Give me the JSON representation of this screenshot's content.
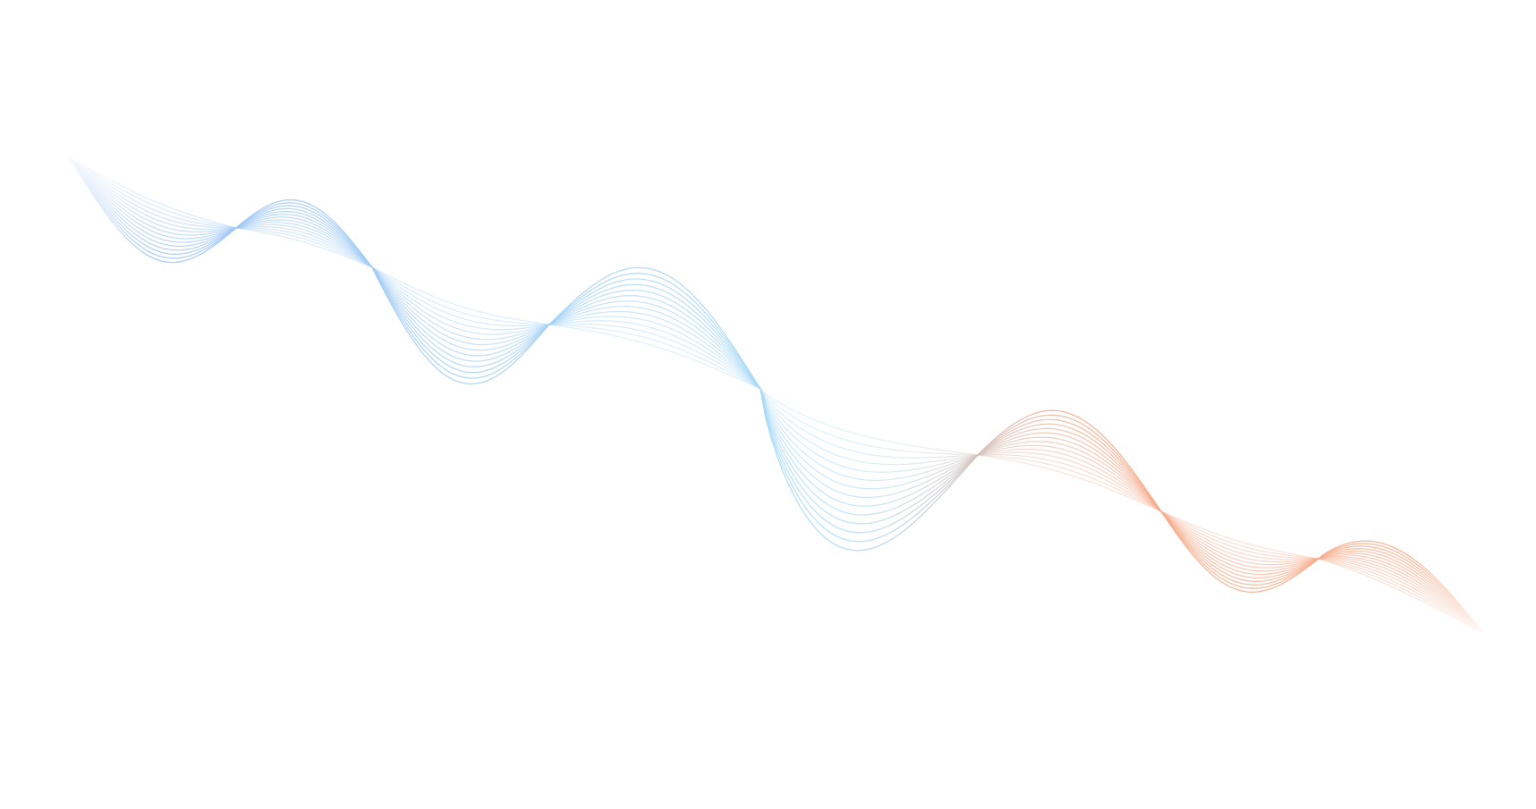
{
  "graphic": {
    "kind": "decorative wave line ribbon",
    "colors": {
      "background": "#ffffff",
      "start": "#9cc3f5",
      "middle": "#a9dcf7",
      "end": "#f6ab8a"
    },
    "line_count": 14
  }
}
